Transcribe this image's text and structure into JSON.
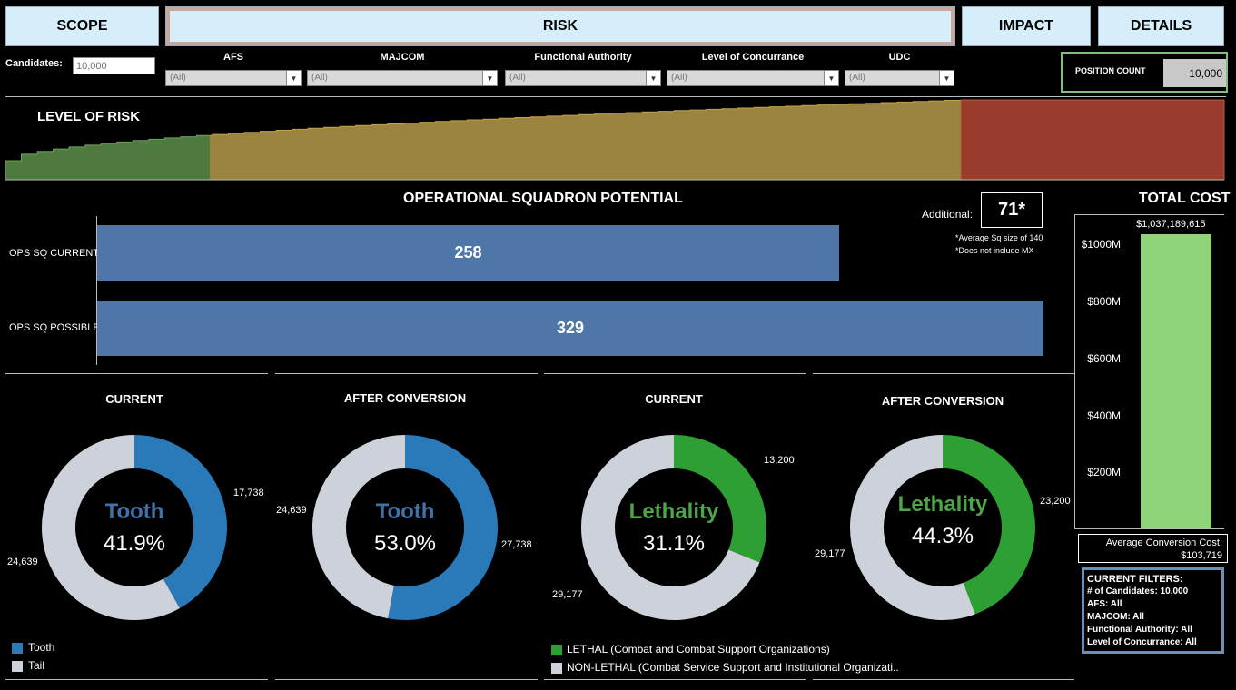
{
  "nav": {
    "scope": "SCOPE",
    "risk": "RISK",
    "impact": "IMPACT",
    "details": "DETAILS"
  },
  "filters": {
    "candidates_label": "Candidates:",
    "candidates_placeholder": "10,000",
    "afs_label": "AFS",
    "afs_value": "(All)",
    "majcom_label": "MAJCOM",
    "majcom_value": "(All)",
    "fa_label": "Functional Authority",
    "fa_value": "(All)",
    "loc_label": "Level of Concurrance",
    "loc_value": "(All)",
    "udc_label": "UDC",
    "udc_value": "(All)"
  },
  "position_count": {
    "label": "POSITION COUNT",
    "value": "10,000"
  },
  "risk": {
    "title": "LEVEL OF RISK"
  },
  "ops": {
    "title": "OPERATIONAL SQUADRON POTENTIAL",
    "current_label": "OPS SQ CURRENT",
    "current_value": "258",
    "possible_label": "OPS SQ POSSIBLE",
    "possible_value": "329",
    "additional_label": "Additional:",
    "additional_value": "71*",
    "note1": "*Average Sq size of 140",
    "note2": "*Does not include MX"
  },
  "donuts": {
    "tooth_current": {
      "title": "CURRENT",
      "word": "Tooth",
      "pct": "41.9%",
      "v1": "17,738",
      "v2": "24,639"
    },
    "tooth_after": {
      "title": "AFTER CONVERSION",
      "word": "Tooth",
      "pct": "53.0%",
      "v1": "27,738",
      "v2": "24,639"
    },
    "leth_current": {
      "title": "CURRENT",
      "word": "Lethality",
      "pct": "31.1%",
      "v1": "13,200",
      "v2": "29,177"
    },
    "leth_after": {
      "title": "AFTER CONVERSION",
      "word": "Lethality",
      "pct": "44.3%",
      "v1": "23,200",
      "v2": "29,177"
    }
  },
  "legend": {
    "tooth": "Tooth",
    "tail": "Tail",
    "lethal": "LETHAL (Combat and Combat Support Organizations)",
    "nonlethal": "NON-LETHAL (Combat Service Support and Institutional Organizati.."
  },
  "cost": {
    "title": "TOTAL COST",
    "value": "$1,037,189,615",
    "ticks": [
      "$1000M",
      "$800M",
      "$600M",
      "$400M",
      "$200M"
    ],
    "avg_label": "Average Conversion Cost:",
    "avg_value": "$103,719"
  },
  "current_filters": {
    "title": "CURRENT FILTERS:",
    "candidates_k": "# of Candidates:",
    "candidates_v": "10,000",
    "afs": "AFS: All",
    "majcom": "MAJCOM: All",
    "fa": "Functional Authority: All",
    "loc": "Level of Concurrance: All"
  },
  "chart_data": [
    {
      "type": "bar",
      "orientation": "horizontal",
      "title": "OPERATIONAL SQUADRON POTENTIAL",
      "categories": [
        "OPS SQ CURRENT",
        "OPS SQ POSSIBLE"
      ],
      "values": [
        258,
        329
      ]
    },
    {
      "type": "pie",
      "title": "CURRENT",
      "labels": [
        "Tooth",
        "Tail"
      ],
      "values": [
        17738,
        24639
      ]
    },
    {
      "type": "pie",
      "title": "AFTER CONVERSION",
      "labels": [
        "Tooth",
        "Tail"
      ],
      "values": [
        27738,
        24639
      ]
    },
    {
      "type": "pie",
      "title": "CURRENT",
      "labels": [
        "LETHAL (Combat and Combat Support Organizations)",
        "NON-LETHAL (Combat Service Support and Institutional Organizati.."
      ],
      "values": [
        13200,
        29177
      ]
    },
    {
      "type": "pie",
      "title": "AFTER CONVERSION",
      "labels": [
        "LETHAL (Combat and Combat Support Organizations)",
        "NON-LETHAL (Combat Service Support and Institutional Organizati.."
      ],
      "values": [
        23200,
        29177
      ]
    },
    {
      "type": "bar",
      "title": "TOTAL COST",
      "categories": [
        ""
      ],
      "values": [
        1037189615
      ],
      "ylim": [
        0,
        1100000000
      ],
      "ticks": [
        "$1000M",
        "$800M",
        "$600M",
        "$400M",
        "$200M"
      ]
    }
  ],
  "colors": {
    "tooth": "#2a7ab9",
    "tail": "#cdd2da",
    "lethal": "#2ea033",
    "bar": "#4f76a8",
    "cost_bar": "#8fd37b",
    "risk_green": "#4e7a40",
    "risk_gold": "#9a843f",
    "risk_red": "#9a3c2c"
  }
}
